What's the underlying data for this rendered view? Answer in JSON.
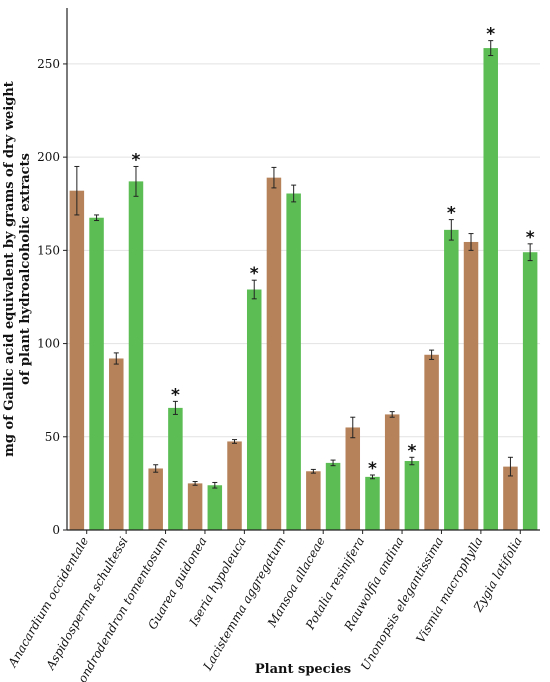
{
  "chart_data": {
    "type": "bar",
    "xlabel": "Plant species",
    "ylabel_line1": "mg of Gallic acid equivalent by grams of dry weight",
    "ylabel_line2": "of plant hydroalcoholic extracts",
    "ylim": [
      0,
      280
    ],
    "yticks": [
      0,
      50,
      100,
      150,
      200,
      250
    ],
    "grid": "horizontal",
    "colors": {
      "brown": "#b5825a",
      "green": "#5cbd55"
    },
    "categories": [
      "Anacardium occidentale",
      "Aspidosperma schultessi",
      "Chondrodendron tomentosum",
      "Guarea guidonea",
      "Iseria hypoleuca",
      "Lacistemma aggregatum",
      "Mansoa allaceae",
      "Potalia resinifera",
      "Rauwolfia andina",
      "Unonopsis elegantissima",
      "Vismia macrophylla",
      "Zygia latifolia"
    ],
    "series": [
      {
        "color": "brown",
        "values": [
          182,
          92,
          33,
          25,
          47.5,
          189,
          31.5,
          55,
          62,
          94,
          154.5,
          34
        ],
        "errors": [
          13,
          3,
          2,
          1,
          1,
          5.5,
          1,
          5.5,
          1.5,
          2.5,
          4.5,
          5
        ],
        "significant": [
          false,
          false,
          false,
          false,
          false,
          false,
          false,
          false,
          false,
          false,
          false,
          false
        ]
      },
      {
        "color": "green",
        "values": [
          167.5,
          187,
          65.5,
          24,
          129,
          180.5,
          36,
          28.5,
          37,
          161,
          258.5,
          149
        ],
        "errors": [
          1.5,
          8,
          3.5,
          1.5,
          5,
          4.5,
          1.5,
          1,
          2,
          5.5,
          4,
          4.5
        ],
        "significant": [
          false,
          true,
          true,
          false,
          true,
          false,
          false,
          true,
          true,
          true,
          true,
          true
        ]
      }
    ],
    "significance_marker": "*"
  }
}
